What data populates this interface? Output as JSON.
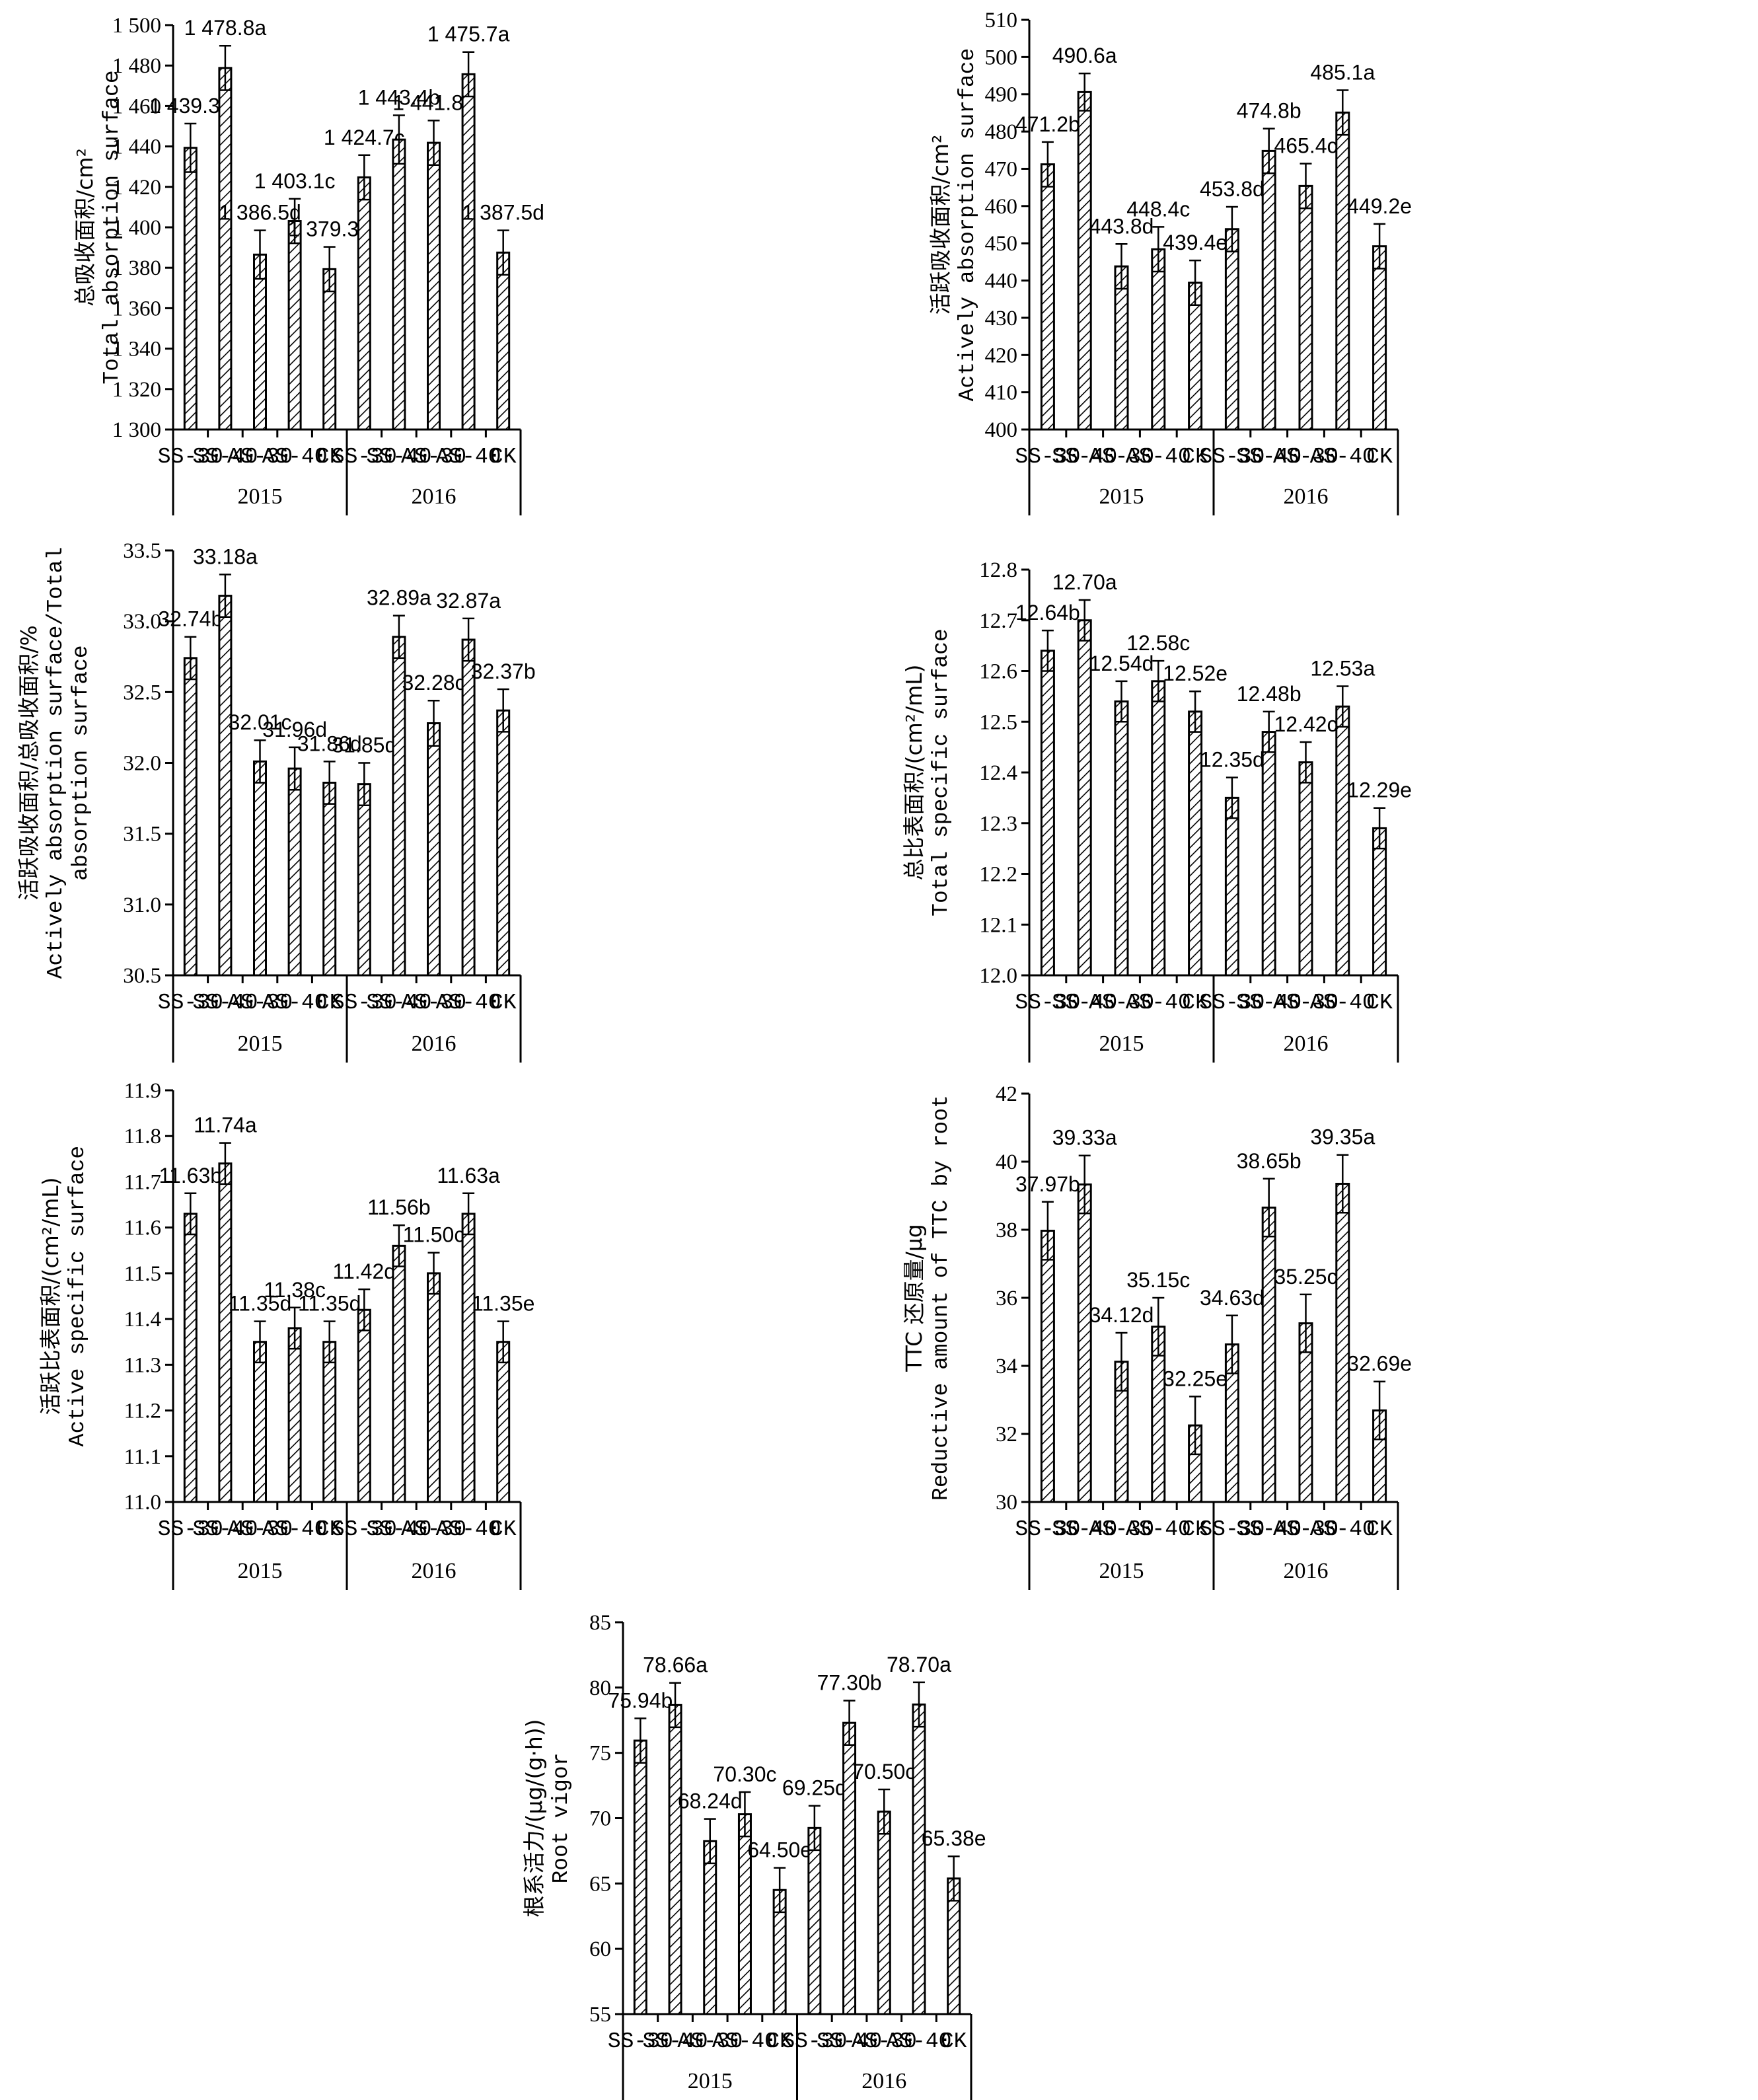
{
  "categories": [
    "SS-30",
    "SS-40",
    "AS-30",
    "AS-40",
    "CK",
    "SS-30",
    "SS-40",
    "AS-30",
    "AS-40",
    "CK"
  ],
  "groups": [
    "2015",
    "2016"
  ],
  "chart_data": [
    {
      "type": "bar",
      "ylabel_cn": "总吸收面积/cm²",
      "ylabel_en": "Total absorption surface",
      "ylim": [
        1300,
        1500
      ],
      "yticks": [
        1300,
        1320,
        1340,
        1360,
        1380,
        1400,
        1420,
        1440,
        1460,
        1480,
        1500
      ],
      "ytick_labels": [
        "1 300",
        "1 320",
        "1 340",
        "1 360",
        "1 380",
        "1 400",
        "1 420",
        "1 440",
        "1 460",
        "1 480",
        "1 500"
      ],
      "values": [
        1439.3,
        1478.8,
        1386.5,
        1403.1,
        1379.3,
        1424.7,
        1443.4,
        1441.8,
        1475.7,
        1387.5
      ],
      "errors": [
        12,
        11,
        12,
        11,
        11,
        11,
        12,
        11,
        11,
        11
      ],
      "labels": [
        "1 439.3b",
        "1 478.8a",
        "1 386.5d",
        "1 403.1c",
        "1 379.3e",
        "1 424.7c",
        "1 443.4b",
        "1 441.8b",
        "1 475.7a",
        "1 387.5d"
      ]
    },
    {
      "type": "bar",
      "ylabel_cn": "活跃吸收面积/cm²",
      "ylabel_en": "Actively absorption surface",
      "ylim": [
        400,
        510
      ],
      "yticks": [
        400,
        410,
        420,
        430,
        440,
        450,
        460,
        470,
        480,
        490,
        500,
        510
      ],
      "ytick_labels": [
        "400",
        "410",
        "420",
        "430",
        "440",
        "450",
        "460",
        "470",
        "480",
        "490",
        "500",
        "510"
      ],
      "values": [
        471.2,
        490.6,
        443.8,
        448.4,
        439.4,
        453.8,
        474.8,
        465.4,
        485.1,
        449.2
      ],
      "errors": [
        6,
        5,
        6,
        6,
        6,
        6,
        6,
        6,
        6,
        6
      ],
      "labels": [
        "471.2b",
        "490.6a",
        "443.8d",
        "448.4c",
        "439.4e",
        "453.8d",
        "474.8b",
        "465.4c",
        "485.1a",
        "449.2e"
      ]
    },
    {
      "type": "bar",
      "ylabel_cn": "活跃吸收面积/总吸收面积/%",
      "ylabel_en": "Actively absorption surface/Total",
      "ylabel_en2": "absorption surface",
      "ylim": [
        30.5,
        33.5
      ],
      "yticks": [
        30.5,
        31.0,
        31.5,
        32.0,
        32.5,
        33.0,
        33.5
      ],
      "ytick_labels": [
        "30.5",
        "31.0",
        "31.5",
        "32.0",
        "32.5",
        "33.0",
        "33.5"
      ],
      "values": [
        32.74,
        33.18,
        32.01,
        31.96,
        31.86,
        31.85,
        32.89,
        32.28,
        32.87,
        32.37
      ],
      "errors": [
        0.15,
        0.15,
        0.15,
        0.15,
        0.15,
        0.15,
        0.15,
        0.16,
        0.15,
        0.15
      ],
      "labels": [
        "32.74b",
        "33.18a",
        "32.01c",
        "31.96d",
        "31.86d",
        "31.85d",
        "32.89a",
        "32.28c",
        "32.87a",
        "32.37b"
      ]
    },
    {
      "type": "bar",
      "ylabel_cn": "总比表面积/(cm²/mL)",
      "ylabel_en": "Total specific surface",
      "ylim": [
        12.0,
        12.8
      ],
      "yticks": [
        12.0,
        12.1,
        12.2,
        12.3,
        12.4,
        12.5,
        12.6,
        12.7,
        12.8
      ],
      "ytick_labels": [
        "12.0",
        "12.1",
        "12.2",
        "12.3",
        "12.4",
        "12.5",
        "12.6",
        "12.7",
        "12.8"
      ],
      "values": [
        12.64,
        12.7,
        12.54,
        12.58,
        12.52,
        12.35,
        12.48,
        12.42,
        12.53,
        12.29
      ],
      "errors": [
        0.04,
        0.04,
        0.04,
        0.04,
        0.04,
        0.04,
        0.04,
        0.04,
        0.04,
        0.04
      ],
      "labels": [
        "12.64b",
        "12.70a",
        "12.54d",
        "12.58c",
        "12.52e",
        "12.35d",
        "12.48b",
        "12.42c",
        "12.53a",
        "12.29e"
      ]
    },
    {
      "type": "bar",
      "ylabel_cn": "活跃比表面积/(cm²/mL)",
      "ylabel_en": "Active specific surface",
      "ylim": [
        11.0,
        11.9
      ],
      "yticks": [
        11.0,
        11.1,
        11.2,
        11.3,
        11.4,
        11.5,
        11.6,
        11.7,
        11.8,
        11.9
      ],
      "ytick_labels": [
        "11.0",
        "11.1",
        "11.2",
        "11.3",
        "11.4",
        "11.5",
        "11.6",
        "11.7",
        "11.8",
        "11.9"
      ],
      "values": [
        11.63,
        11.74,
        11.35,
        11.38,
        11.35,
        11.42,
        11.56,
        11.5,
        11.63,
        11.35
      ],
      "errors": [
        0.045,
        0.045,
        0.045,
        0.045,
        0.045,
        0.045,
        0.045,
        0.045,
        0.045,
        0.045
      ],
      "labels": [
        "11.63b",
        "11.74a",
        "11.35d",
        "11.38c",
        "11.35d",
        "11.42d",
        "11.56b",
        "11.50c",
        "11.63a",
        "11.35e"
      ]
    },
    {
      "type": "bar",
      "ylabel_cn": "TTC 还原量/μg",
      "ylabel_en": "Reductive amount of TTC by root",
      "ylim": [
        30,
        42
      ],
      "yticks": [
        30,
        32,
        34,
        36,
        38,
        40,
        42
      ],
      "ytick_labels": [
        "30",
        "32",
        "34",
        "36",
        "38",
        "40",
        "42"
      ],
      "values": [
        37.97,
        39.33,
        34.12,
        35.15,
        32.25,
        34.63,
        38.65,
        35.25,
        39.35,
        32.69
      ],
      "errors": [
        0.85,
        0.85,
        0.85,
        0.85,
        0.85,
        0.85,
        0.85,
        0.85,
        0.85,
        0.85
      ],
      "labels": [
        "37.97b",
        "39.33a",
        "34.12d",
        "35.15c",
        "32.25e",
        "34.63d",
        "38.65b",
        "35.25c",
        "39.35a",
        "32.69e"
      ]
    },
    {
      "type": "bar",
      "ylabel_cn": "根系活力/(μg/(g·h))",
      "ylabel_en": "Root vigor",
      "ylim": [
        55,
        85
      ],
      "yticks": [
        55,
        60,
        65,
        70,
        75,
        80,
        85
      ],
      "ytick_labels": [
        "55",
        "60",
        "65",
        "70",
        "75",
        "80",
        "85"
      ],
      "values": [
        75.94,
        78.66,
        68.24,
        70.3,
        64.5,
        69.25,
        77.3,
        70.5,
        78.7,
        65.38
      ],
      "errors": [
        1.7,
        1.7,
        1.7,
        1.7,
        1.7,
        1.7,
        1.7,
        1.7,
        1.7,
        1.7
      ],
      "labels": [
        "75.94b",
        "78.66a",
        "68.24d",
        "70.30c",
        "64.50e",
        "69.25d",
        "77.30b",
        "70.50c",
        "78.70a",
        "65.38e"
      ]
    }
  ]
}
